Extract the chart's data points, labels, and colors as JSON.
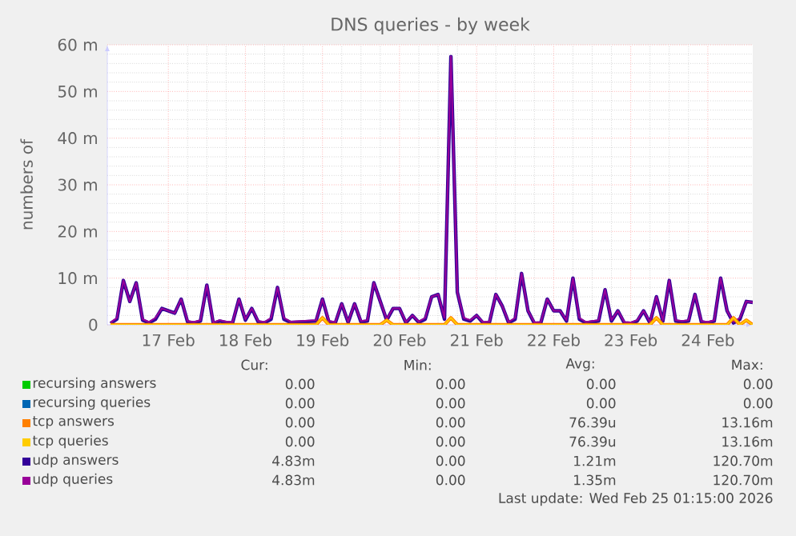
{
  "chart_data": {
    "type": "line",
    "title": "DNS queries - by week",
    "ylabel": "numbers of",
    "x": [
      "2026-02-16T18:00",
      "2026-02-16T20:00",
      "2026-02-16T22:00",
      "2026-02-17T00:00",
      "2026-02-17T02:00",
      "2026-02-17T04:00",
      "2026-02-17T06:00",
      "2026-02-17T08:00",
      "2026-02-17T10:00",
      "2026-02-17T12:00",
      "2026-02-17T14:00",
      "2026-02-17T16:00",
      "2026-02-17T18:00",
      "2026-02-17T20:00",
      "2026-02-17T22:00",
      "2026-02-18T00:00",
      "2026-02-18T02:00",
      "2026-02-18T04:00",
      "2026-02-18T06:00",
      "2026-02-18T08:00",
      "2026-02-18T10:00",
      "2026-02-18T12:00",
      "2026-02-18T14:00",
      "2026-02-18T16:00",
      "2026-02-18T18:00",
      "2026-02-18T20:00",
      "2026-02-18T22:00",
      "2026-02-19T00:00",
      "2026-02-19T02:00",
      "2026-02-19T04:00",
      "2026-02-19T06:00",
      "2026-02-19T08:00",
      "2026-02-19T10:00",
      "2026-02-19T12:00",
      "2026-02-19T14:00",
      "2026-02-19T16:00",
      "2026-02-19T18:00",
      "2026-02-19T20:00",
      "2026-02-19T22:00",
      "2026-02-20T00:00",
      "2026-02-20T02:00",
      "2026-02-20T04:00",
      "2026-02-20T06:00",
      "2026-02-20T08:00",
      "2026-02-20T10:00",
      "2026-02-20T12:00",
      "2026-02-20T14:00",
      "2026-02-20T16:00",
      "2026-02-20T18:00",
      "2026-02-20T20:00",
      "2026-02-20T22:00",
      "2026-02-21T00:00",
      "2026-02-21T02:00",
      "2026-02-21T04:00",
      "2026-02-21T06:00",
      "2026-02-21T08:00",
      "2026-02-21T10:00",
      "2026-02-21T12:00",
      "2026-02-21T14:00",
      "2026-02-21T16:00",
      "2026-02-21T18:00",
      "2026-02-21T20:00",
      "2026-02-21T22:00",
      "2026-02-22T00:00",
      "2026-02-22T02:00",
      "2026-02-22T04:00",
      "2026-02-22T06:00",
      "2026-02-22T08:00",
      "2026-02-22T10:00",
      "2026-02-22T12:00",
      "2026-02-22T14:00",
      "2026-02-22T16:00",
      "2026-02-22T18:00",
      "2026-02-22T20:00",
      "2026-02-22T22:00",
      "2026-02-23T00:00",
      "2026-02-23T02:00",
      "2026-02-23T04:00",
      "2026-02-23T06:00",
      "2026-02-23T08:00",
      "2026-02-23T10:00",
      "2026-02-23T12:00",
      "2026-02-23T14:00",
      "2026-02-23T16:00",
      "2026-02-23T18:00",
      "2026-02-23T20:00",
      "2026-02-23T22:00",
      "2026-02-24T00:00",
      "2026-02-24T02:00",
      "2026-02-24T04:00",
      "2026-02-24T06:00",
      "2026-02-24T08:00",
      "2026-02-24T10:00",
      "2026-02-24T12:00",
      "2026-02-24T14:00",
      "2026-02-24T16:00",
      "2026-02-24T18:00",
      "2026-02-24T20:00",
      "2026-02-24T22:00",
      "2026-02-25T00:00",
      "2026-02-25T02:00"
    ],
    "series": [
      {
        "name": "recursing answers",
        "color": "#00cc00",
        "values": [
          null,
          null,
          null,
          null,
          null,
          null,
          null,
          null,
          null,
          null,
          null,
          null,
          null,
          null,
          null,
          null,
          null,
          null,
          null,
          null,
          null,
          null,
          null,
          null,
          null,
          null,
          null,
          null,
          null,
          null,
          null,
          null,
          null,
          null,
          null,
          null,
          null,
          null,
          null,
          null,
          null,
          null,
          null,
          null,
          null,
          null,
          null,
          null,
          null,
          null,
          null,
          null,
          null,
          null,
          null,
          null,
          null,
          null,
          null,
          null,
          null,
          null,
          null,
          null,
          null,
          null,
          null,
          null,
          null,
          null,
          null,
          null,
          null,
          null,
          null,
          null,
          null,
          null,
          null,
          null,
          null,
          null,
          null,
          null,
          null,
          null,
          null,
          null,
          null,
          null,
          null,
          null,
          null,
          null,
          null,
          null,
          null,
          null,
          null,
          null,
          null
        ]
      },
      {
        "name": "recursing queries",
        "color": "#0066b3",
        "values": [
          null,
          null,
          null,
          null,
          null,
          null,
          null,
          null,
          null,
          null,
          null,
          null,
          null,
          null,
          null,
          null,
          null,
          null,
          null,
          null,
          null,
          null,
          null,
          null,
          null,
          null,
          null,
          null,
          null,
          null,
          null,
          null,
          null,
          null,
          null,
          null,
          null,
          null,
          null,
          null,
          null,
          null,
          null,
          null,
          null,
          null,
          null,
          null,
          null,
          null,
          null,
          null,
          null,
          null,
          null,
          null,
          null,
          null,
          null,
          null,
          null,
          null,
          null,
          null,
          null,
          null,
          null,
          null,
          null,
          null,
          null,
          null,
          null,
          null,
          null,
          null,
          null,
          null,
          null,
          null,
          null,
          null,
          null,
          null,
          null,
          null,
          null,
          null,
          null,
          null,
          null,
          null,
          null,
          null,
          null,
          null,
          null,
          null,
          null,
          null,
          null
        ]
      },
      {
        "name": "tcp answers",
        "color": "#ff8000",
        "values": [
          0,
          0,
          0,
          0,
          0,
          0,
          0,
          0,
          0,
          0,
          0,
          0,
          0,
          0,
          0,
          0,
          0,
          0,
          0,
          0,
          0,
          0,
          0,
          0,
          0,
          0,
          0,
          0,
          0,
          0,
          0,
          0,
          0,
          1.5,
          0,
          0,
          0,
          0,
          0,
          0,
          0,
          0,
          0,
          1,
          0,
          0,
          0,
          0,
          0,
          0,
          0,
          0,
          0,
          1.5,
          0,
          0,
          0,
          0,
          0,
          0,
          0,
          0,
          0,
          0,
          0,
          0,
          0,
          0,
          0,
          0,
          0,
          0,
          0,
          0,
          0,
          0,
          0,
          0,
          0,
          0,
          0,
          0,
          0,
          0,
          0,
          1.5,
          0,
          0,
          0,
          0,
          0,
          0,
          0,
          0,
          0,
          0,
          0,
          1.5,
          0,
          1,
          0
        ]
      },
      {
        "name": "tcp queries",
        "color": "#ffcc00",
        "values": [
          0,
          0,
          0,
          0,
          0,
          0,
          0,
          0,
          0,
          0,
          0,
          0,
          0,
          0,
          0,
          0,
          0,
          0,
          0,
          0,
          0,
          0,
          0,
          0,
          0,
          0,
          0,
          0,
          0,
          0,
          0,
          0,
          0,
          1.5,
          0,
          0,
          0,
          0,
          0,
          0,
          0,
          0,
          0,
          1,
          0,
          0,
          0,
          0,
          0,
          0,
          0,
          0,
          0,
          1.5,
          0,
          0,
          0,
          0,
          0,
          0,
          0,
          0,
          0,
          0,
          0,
          0,
          0,
          0,
          0,
          0,
          0,
          0,
          0,
          0,
          0,
          0,
          0,
          0,
          0,
          0,
          0,
          0,
          0,
          0,
          0,
          1.5,
          0,
          0,
          0,
          0,
          0,
          0,
          0,
          0,
          0,
          0,
          0,
          1.5,
          0,
          1,
          0
        ]
      },
      {
        "name": "udp answers",
        "color": "#330099",
        "values": [
          0.3,
          1.2,
          9.5,
          5,
          9,
          1,
          0.4,
          1.2,
          3.5,
          3,
          2.5,
          5.5,
          0.6,
          0.4,
          0.8,
          8.5,
          0.3,
          0.8,
          0.5,
          0.4,
          5.5,
          1,
          3.5,
          0.6,
          0.4,
          1.2,
          8,
          1.2,
          0.5,
          null,
          null,
          null,
          0.8,
          5.5,
          0.6,
          0.4,
          4.5,
          0.5,
          4.5,
          0.6,
          0.8,
          9,
          5,
          1,
          3.5,
          3.5,
          0.4,
          2,
          0.5,
          1.2,
          6,
          6.5,
          1.2,
          57.5,
          7,
          1.2,
          0.8,
          2,
          0.4,
          0.5,
          6.5,
          4,
          0.4,
          1.2,
          11,
          3,
          0.3,
          0.4,
          5.5,
          3,
          3,
          0.8,
          10,
          1.2,
          0.4,
          0.6,
          0.8,
          7.5,
          0.8,
          3,
          0.4,
          0.3,
          0.8,
          3,
          0.4,
          6,
          0.8,
          9.5,
          0.8,
          0.6,
          0.8,
          6.5,
          0.6,
          0.4,
          0.8,
          10,
          3,
          0.4,
          1.2,
          5,
          4.8
        ]
      },
      {
        "name": "udp queries",
        "color": "#990099",
        "values": [
          0.5,
          1.5,
          9.5,
          5,
          9,
          1.2,
          0.6,
          1.5,
          3.5,
          3,
          2.5,
          5.5,
          0.8,
          0.6,
          1,
          8.5,
          0.5,
          1,
          0.7,
          0.6,
          5.5,
          1.2,
          3.5,
          0.8,
          0.6,
          1.5,
          8,
          1.5,
          0.7,
          null,
          null,
          null,
          1,
          5.5,
          0.8,
          0.6,
          4.5,
          0.7,
          4.5,
          0.8,
          1,
          9,
          5,
          1.2,
          3.5,
          3.5,
          0.6,
          2,
          0.7,
          1.5,
          6,
          6.5,
          1.5,
          57.5,
          7,
          1.5,
          1,
          2,
          0.6,
          0.7,
          6.5,
          4,
          0.6,
          1.5,
          11,
          3,
          0.5,
          0.6,
          5.5,
          3,
          3,
          1,
          10,
          1.5,
          0.6,
          0.8,
          1,
          7.5,
          1,
          3,
          0.6,
          0.5,
          1,
          3,
          0.6,
          6,
          1,
          9.5,
          1,
          0.8,
          1,
          6.5,
          0.8,
          0.6,
          1,
          10,
          3,
          0.6,
          1.5,
          5,
          4.8
        ]
      }
    ],
    "xlim": [
      "2026-02-16T17:00",
      "2026-02-25T02:00"
    ],
    "xticks": [
      {
        "value": "2026-02-17T12:00",
        "label": "17 Feb"
      },
      {
        "value": "2026-02-18T12:00",
        "label": "18 Feb"
      },
      {
        "value": "2026-02-19T12:00",
        "label": "19 Feb"
      },
      {
        "value": "2026-02-20T12:00",
        "label": "20 Feb"
      },
      {
        "value": "2026-02-21T12:00",
        "label": "21 Feb"
      },
      {
        "value": "2026-02-22T12:00",
        "label": "22 Feb"
      },
      {
        "value": "2026-02-23T12:00",
        "label": "23 Feb"
      },
      {
        "value": "2026-02-24T12:00",
        "label": "24 Feb"
      }
    ],
    "ylim": [
      0,
      60
    ],
    "yticks": [
      0,
      {
        "value": 10,
        "label": "10 m"
      },
      {
        "value": 20,
        "label": "20 m"
      },
      {
        "value": 30,
        "label": "30 m"
      },
      {
        "value": 40,
        "label": "40 m"
      },
      {
        "value": 50,
        "label": "50 m"
      },
      {
        "value": 60,
        "label": "60 m"
      }
    ],
    "grid": true,
    "legend": "bottom",
    "marker": "none",
    "line_style": "solid",
    "annotations": [
      "Cur:",
      "Min:",
      "Avg:",
      "Max:",
      "0.00",
      "0.00",
      "0.00",
      "0.00",
      "0.00",
      "0.00",
      "0.00",
      "0.00",
      "0.00",
      "0.00",
      "76.39u",
      "13.16m",
      "0.00",
      "0.00",
      "76.39u",
      "13.16m",
      "4.83m",
      "0.00",
      "1.21m",
      "120.70m",
      "4.83m",
      "0.00",
      "1.35m",
      "120.70m",
      "Last update: Wed Feb 25 01:15:00 2026"
    ]
  }
}
